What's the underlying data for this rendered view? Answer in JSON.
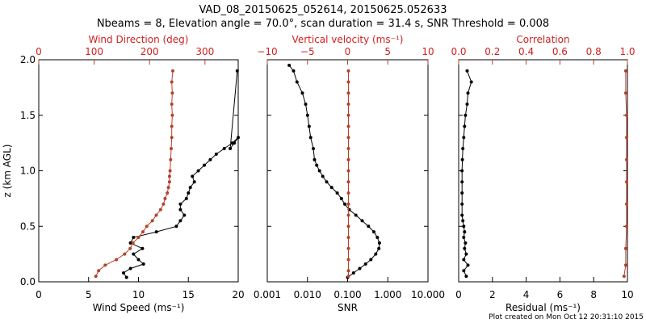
{
  "title_line1": "VAD_08_20150625_052614, 20150625.052633",
  "title_line2": "Nbeams = 8, Elevation angle = 70.0°, scan duration = 31.4 s, SNR Threshold = 0.008",
  "footer": "Plot created on Mon Oct 12 20:31:10 2015",
  "colors": {
    "axis": "#000000",
    "accent": "#b5412c",
    "accent_text": "#d22020"
  },
  "chart_data": [
    {
      "type": "line",
      "ylabel": "z (km AGL)",
      "ylim": [
        0,
        2
      ],
      "yticks": [
        "0.0",
        "0.5",
        "1.0",
        "1.5",
        "2.0"
      ],
      "bottom_axis": {
        "label": "Wind Speed (ms⁻¹)",
        "range": [
          0,
          20
        ],
        "scale": "linear",
        "ticks": [
          "0",
          "5",
          "10",
          "15",
          "20"
        ]
      },
      "top_axis": {
        "label": "Wind Direction (deg)",
        "range": [
          0,
          360
        ],
        "scale": "linear",
        "ticks": [
          "0",
          "100",
          "200",
          "300"
        ]
      },
      "series": [
        {
          "axis": "bottom",
          "color": "#000000",
          "points": [
            [
              8.8,
              0.04
            ],
            [
              8.5,
              0.08
            ],
            [
              9.2,
              0.12
            ],
            [
              10.5,
              0.16
            ],
            [
              10,
              0.2
            ],
            [
              9.5,
              0.25
            ],
            [
              10.4,
              0.3
            ],
            [
              9.2,
              0.35
            ],
            [
              9.5,
              0.4
            ],
            [
              11.8,
              0.45
            ],
            [
              13.8,
              0.5
            ],
            [
              14.2,
              0.55
            ],
            [
              14.6,
              0.6
            ],
            [
              14.2,
              0.65
            ],
            [
              14.2,
              0.7
            ],
            [
              14.8,
              0.75
            ],
            [
              15,
              0.8
            ],
            [
              15.2,
              0.85
            ],
            [
              15.6,
              0.9
            ],
            [
              15.4,
              0.95
            ],
            [
              16,
              1
            ],
            [
              16.6,
              1.05
            ],
            [
              17.2,
              1.1
            ],
            [
              17.8,
              1.15
            ],
            [
              18.6,
              1.2
            ],
            [
              19.4,
              1.25
            ],
            [
              20,
              1.3
            ],
            [
              19.6,
              1.25
            ],
            [
              19.2,
              1.2
            ],
            [
              19.9,
              1.9
            ]
          ]
        },
        {
          "axis": "top",
          "color": "#b5412c",
          "points": [
            [
              103,
              0.05
            ],
            [
              108,
              0.1
            ],
            [
              120,
              0.15
            ],
            [
              140,
              0.2
            ],
            [
              155,
              0.25
            ],
            [
              165,
              0.3
            ],
            [
              170,
              0.35
            ],
            [
              180,
              0.4
            ],
            [
              188,
              0.45
            ],
            [
              195,
              0.5
            ],
            [
              205,
              0.55
            ],
            [
              212,
              0.6
            ],
            [
              220,
              0.65
            ],
            [
              225,
              0.7
            ],
            [
              228,
              0.75
            ],
            [
              232,
              0.8
            ],
            [
              234,
              0.85
            ],
            [
              236,
              0.9
            ],
            [
              236,
              0.95
            ],
            [
              237,
              1
            ],
            [
              238,
              1.1
            ],
            [
              239,
              1.2
            ],
            [
              240,
              1.3
            ],
            [
              240,
              1.4
            ],
            [
              241,
              1.5
            ],
            [
              240,
              1.6
            ],
            [
              241,
              1.7
            ],
            [
              240,
              1.8
            ],
            [
              242,
              1.9
            ]
          ]
        }
      ]
    },
    {
      "type": "line",
      "ylim": [
        0,
        2
      ],
      "bottom_axis": {
        "label": "SNR",
        "range": [
          0.001,
          10
        ],
        "scale": "log",
        "ticks": [
          "0.001",
          "0.010",
          "0.100",
          "1.000",
          "10.000"
        ]
      },
      "top_axis": {
        "label": "Vertical velocity (ms⁻¹)",
        "range": [
          -10,
          10
        ],
        "scale": "linear",
        "ticks": [
          "−10",
          "−5",
          "0",
          "5",
          "10"
        ]
      },
      "series": [
        {
          "axis": "bottom",
          "color": "#000000",
          "points": [
            [
              0.1,
              0.04
            ],
            [
              0.14,
              0.08
            ],
            [
              0.2,
              0.12
            ],
            [
              0.28,
              0.16
            ],
            [
              0.38,
              0.2
            ],
            [
              0.5,
              0.25
            ],
            [
              0.6,
              0.3
            ],
            [
              0.62,
              0.35
            ],
            [
              0.55,
              0.4
            ],
            [
              0.45,
              0.45
            ],
            [
              0.33,
              0.5
            ],
            [
              0.23,
              0.55
            ],
            [
              0.16,
              0.6
            ],
            [
              0.11,
              0.65
            ],
            [
              0.085,
              0.7
            ],
            [
              0.07,
              0.75
            ],
            [
              0.055,
              0.8
            ],
            [
              0.04,
              0.85
            ],
            [
              0.03,
              0.9
            ],
            [
              0.024,
              0.95
            ],
            [
              0.02,
              1
            ],
            [
              0.017,
              1.05
            ],
            [
              0.015,
              1.1
            ],
            [
              0.014,
              1.2
            ],
            [
              0.012,
              1.3
            ],
            [
              0.011,
              1.4
            ],
            [
              0.01,
              1.5
            ],
            [
              0.009,
              1.6
            ],
            [
              0.0075,
              1.7
            ],
            [
              0.0055,
              1.8
            ],
            [
              0.0045,
              1.9
            ],
            [
              0.0035,
              1.95
            ]
          ]
        },
        {
          "axis": "top",
          "color": "#b5412c",
          "points": [
            [
              0.1,
              0.05
            ],
            [
              0.1,
              0.1
            ],
            [
              0.1,
              0.2
            ],
            [
              0.1,
              0.3
            ],
            [
              0.1,
              0.4
            ],
            [
              0.1,
              0.5
            ],
            [
              0.1,
              0.6
            ],
            [
              0.1,
              0.7
            ],
            [
              0.1,
              0.8
            ],
            [
              0.1,
              0.9
            ],
            [
              0.1,
              1
            ],
            [
              0.1,
              1.1
            ],
            [
              0.1,
              1.2
            ],
            [
              0.1,
              1.3
            ],
            [
              0.1,
              1.4
            ],
            [
              0.1,
              1.5
            ],
            [
              0.1,
              1.6
            ],
            [
              0.1,
              1.7
            ],
            [
              0.1,
              1.8
            ],
            [
              0.1,
              1.9
            ]
          ]
        }
      ]
    },
    {
      "type": "line",
      "ylim": [
        0,
        2
      ],
      "bottom_axis": {
        "label": "Residual (ms⁻¹)",
        "range": [
          0,
          10
        ],
        "scale": "linear",
        "ticks": [
          "0",
          "2",
          "4",
          "6",
          "8",
          "10"
        ]
      },
      "top_axis": {
        "label": "Correlation",
        "range": [
          0,
          1
        ],
        "scale": "linear",
        "ticks": [
          "0.0",
          "0.2",
          "0.4",
          "0.6",
          "0.8",
          "1.0"
        ]
      },
      "series": [
        {
          "axis": "bottom",
          "color": "#000000",
          "points": [
            [
              0.45,
              0.05
            ],
            [
              0.3,
              0.1
            ],
            [
              0.55,
              0.15
            ],
            [
              0.3,
              0.2
            ],
            [
              0.45,
              0.25
            ],
            [
              0.35,
              0.3
            ],
            [
              0.4,
              0.35
            ],
            [
              0.3,
              0.4
            ],
            [
              0.35,
              0.45
            ],
            [
              0.3,
              0.5
            ],
            [
              0.25,
              0.55
            ],
            [
              0.2,
              0.6
            ],
            [
              0.2,
              0.7
            ],
            [
              0.2,
              0.8
            ],
            [
              0.2,
              0.9
            ],
            [
              0.2,
              1
            ],
            [
              0.22,
              1.1
            ],
            [
              0.25,
              1.2
            ],
            [
              0.3,
              1.3
            ],
            [
              0.35,
              1.4
            ],
            [
              0.4,
              1.5
            ],
            [
              0.5,
              1.6
            ],
            [
              0.55,
              1.7
            ],
            [
              0.75,
              1.8
            ],
            [
              0.5,
              1.9
            ]
          ]
        },
        {
          "axis": "top",
          "color": "#b5412c",
          "points": [
            [
              0.98,
              0.05
            ],
            [
              0.99,
              0.15
            ],
            [
              0.99,
              0.3
            ],
            [
              0.995,
              0.5
            ],
            [
              0.995,
              0.7
            ],
            [
              0.995,
              0.9
            ],
            [
              0.995,
              1.1
            ],
            [
              0.995,
              1.3
            ],
            [
              0.995,
              1.5
            ],
            [
              0.99,
              1.7
            ],
            [
              0.99,
              1.9
            ]
          ]
        }
      ]
    }
  ]
}
